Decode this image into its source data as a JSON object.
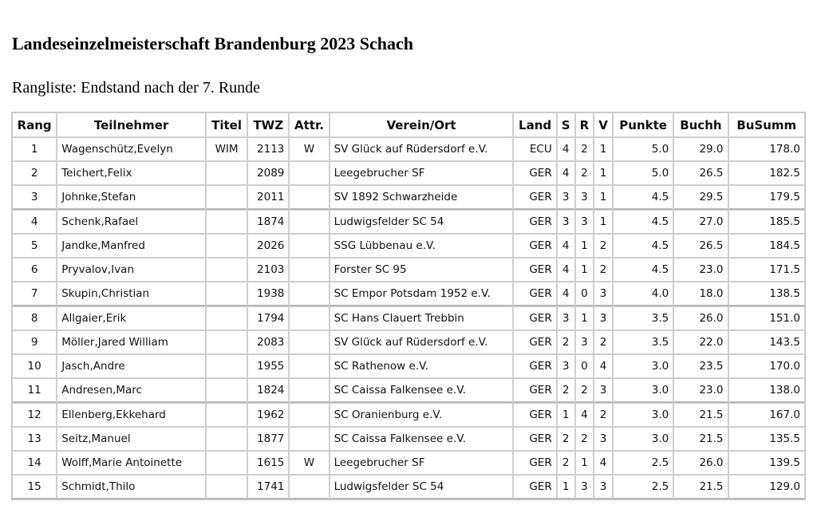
{
  "title": "Landeseinzelmeisterschaft Brandenburg 2023 Schach",
  "subtitle": "Rangliste: Endstand nach der 7. Runde",
  "columns": [
    "Rang",
    "Teilnehmer",
    "Titel",
    "TWZ",
    "Attr.",
    "Verein/Ort",
    "Land",
    "S",
    "R",
    "V",
    "Punkte",
    "Buchh",
    "BuSumm"
  ],
  "rows": [
    [
      "1",
      "Wagenschütz,Evelyn",
      "WIM",
      "2113",
      "W",
      "SV Glück auf Rüdersdorf e.V.",
      "ECU",
      "4",
      "2",
      "1",
      "5.0",
      "29.0",
      "178.0"
    ],
    [
      "2",
      "Teichert,Felix",
      "",
      "2089",
      "",
      "Leegebrucher SF",
      "GER",
      "4",
      "2",
      "1",
      "5.0",
      "26.5",
      "182.5"
    ],
    [
      "3",
      "Johnke,Stefan",
      "",
      "2011",
      "",
      "SV 1892 Schwarzheide",
      "GER",
      "3",
      "3",
      "1",
      "4.5",
      "29.5",
      "179.5"
    ],
    [
      "4",
      "Schenk,Rafael",
      "",
      "1874",
      "",
      "Ludwigsfelder SC 54",
      "GER",
      "3",
      "3",
      "1",
      "4.5",
      "27.0",
      "185.5"
    ],
    [
      "5",
      "Jandke,Manfred",
      "",
      "2026",
      "",
      "SSG Lübbenau e.V.",
      "GER",
      "4",
      "1",
      "2",
      "4.5",
      "26.5",
      "184.5"
    ],
    [
      "6",
      "Pryvalov,Ivan",
      "",
      "2103",
      "",
      "Forster SC 95",
      "GER",
      "4",
      "1",
      "2",
      "4.5",
      "23.0",
      "171.5"
    ],
    [
      "7",
      "Skupin,Christian",
      "",
      "1938",
      "",
      "SC Empor Potsdam 1952 e.V.",
      "GER",
      "4",
      "0",
      "3",
      "4.0",
      "18.0",
      "138.5"
    ],
    [
      "8",
      "Allgaier,Erik",
      "",
      "1794",
      "",
      "SC Hans Clauert Trebbin",
      "GER",
      "3",
      "1",
      "3",
      "3.5",
      "26.0",
      "151.0"
    ],
    [
      "9",
      "Möller,Jared William",
      "",
      "2083",
      "",
      "SV Glück auf Rüdersdorf e.V.",
      "GER",
      "2",
      "3",
      "2",
      "3.5",
      "22.0",
      "143.5"
    ],
    [
      "10",
      "Jasch,Andre",
      "",
      "1955",
      "",
      "SC Rathenow e.V.",
      "GER",
      "3",
      "0",
      "4",
      "3.0",
      "23.5",
      "170.0"
    ],
    [
      "11",
      "Andresen,Marc",
      "",
      "1824",
      "",
      "SC Caissa Falkensee e.V.",
      "GER",
      "2",
      "2",
      "3",
      "3.0",
      "23.0",
      "138.0"
    ],
    [
      "12",
      "Ellenberg,Ekkehard",
      "",
      "1962",
      "",
      "SC Oranienburg e.V.",
      "GER",
      "1",
      "4",
      "2",
      "3.0",
      "21.5",
      "167.0"
    ],
    [
      "13",
      "Seitz,Manuel",
      "",
      "1877",
      "",
      "SC Caissa Falkensee e.V.",
      "GER",
      "2",
      "2",
      "3",
      "3.0",
      "21.5",
      "135.5"
    ],
    [
      "14",
      "Wolff,Marie Antoinette",
      "",
      "1615",
      "W",
      "Leegebrucher SF",
      "GER",
      "2",
      "1",
      "4",
      "2.5",
      "26.0",
      "139.5"
    ],
    [
      "15",
      "Schmidt,Thilo",
      "",
      "1741",
      "",
      "Ludwigsfelder SC 54",
      "GER",
      "1",
      "3",
      "3",
      "2.5",
      "21.5",
      "129.0"
    ]
  ]
}
